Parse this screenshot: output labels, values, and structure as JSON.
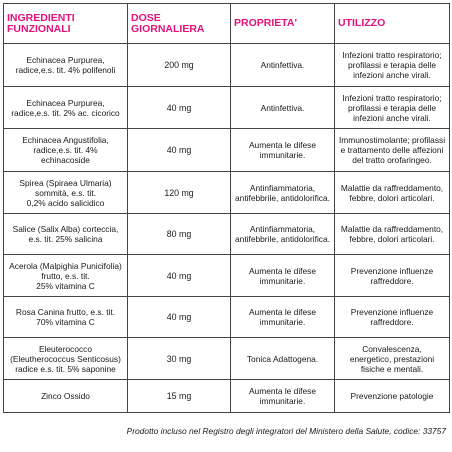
{
  "headers": [
    "INGREDIENTI FUNZIONALI",
    "DOSE GIORNALIERA",
    "PROPRIETA'",
    "UTILIZZO"
  ],
  "rows": [
    {
      "ingredient": [
        "Echinacea Purpurea,",
        "radice,e.s. tit. 4% polifenoli"
      ],
      "dose": "200 mg",
      "property": [
        "Antinfettiva."
      ],
      "use": [
        "Infezioni tratto respiratorio;",
        "profilassi e terapia delle",
        "infezioni anche virali."
      ]
    },
    {
      "ingredient": [
        "Echinacea Purpurea,",
        "radice,e.s. tit. 2% ac. cicorico"
      ],
      "dose": "40 mg",
      "property": [
        "Antinfettiva."
      ],
      "use": [
        "Infezioni tratto respiratorio;",
        "profilassi e terapia delle",
        "infezioni anche virali."
      ]
    },
    {
      "ingredient": [
        "Echinacea Angustifolia,",
        "radice,e.s. tit. 4%",
        "echinacoside"
      ],
      "dose": "40 mg",
      "property": [
        "Aumenta le difese",
        "immunitarie."
      ],
      "use": [
        "Immunostimolante; profilassi",
        "e trattamento delle affezioni",
        "del tratto orofaringeo."
      ]
    },
    {
      "ingredient": [
        "Spirea (Spiraea Ulmaria)",
        "sommità, e.s. tit.",
        "0,2% acido salicidico"
      ],
      "dose": "120 mg",
      "property": [
        "Antinfiammatoria,",
        "antifebbrile, antidolorifica."
      ],
      "use": [
        "Malattie da raffreddamento,",
        "febbre, dolori articolari."
      ]
    },
    {
      "ingredient": [
        "Salice (Salix Alba) corteccia,",
        "e.s. tit. 25% salicina"
      ],
      "dose": "80 mg",
      "property": [
        "Antinfiammatoria,",
        "antifebbrile, antidolorifica."
      ],
      "use": [
        "Malattie da raffreddamento,",
        "febbre, dolori articolari."
      ]
    },
    {
      "ingredient": [
        "Acerola (Malpighia Punicifolia)",
        "frutto, e.s. tit.",
        "25% vitamina C"
      ],
      "dose": "40 mg",
      "property": [
        "Aumenta le difese",
        "immunitarie."
      ],
      "use": [
        "Prevenzione influenze",
        "raffreddore."
      ]
    },
    {
      "ingredient": [
        "Rosa Canina frutto, e.s. tit.",
        "70% vitamina C"
      ],
      "dose": "40 mg",
      "property": [
        "Aumenta le difese",
        "immunitarie."
      ],
      "use": [
        "Prevenzione influenze",
        "raffreddore."
      ]
    },
    {
      "ingredient": [
        "Eleuterococco",
        "(Eleutherococcus Senticosus)",
        "radice e.s. tit. 5% saponine"
      ],
      "dose": "30 mg",
      "property": [
        "Tonica Adattogena."
      ],
      "use": [
        "Convalescenza,",
        "energetico, prestazioni",
        "fisiche e mentali."
      ]
    },
    {
      "ingredient": [
        "Zinco Ossido"
      ],
      "dose": "15 mg",
      "property": [
        "Aumenta le difese",
        "immunitarie."
      ],
      "use": [
        "Prevenzione patologie"
      ]
    }
  ],
  "footer": "Prodotto incluso nel Registro degli integratori del Ministero della Salute, codice: 33757"
}
